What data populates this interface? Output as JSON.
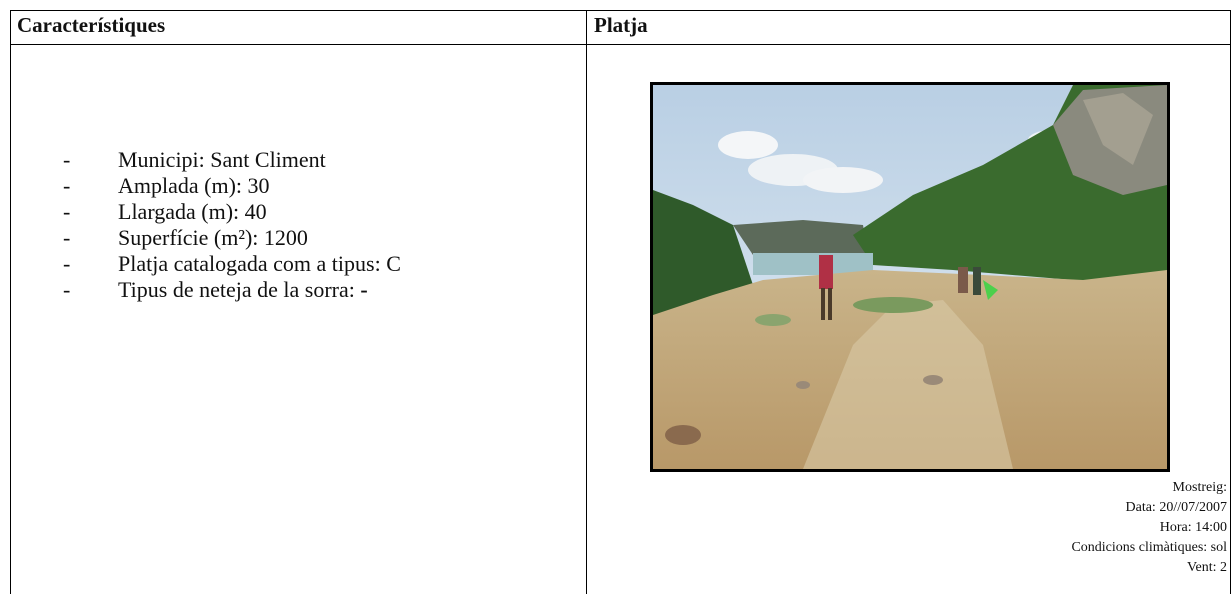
{
  "header": [
    "Característiques",
    "Platja"
  ],
  "items": [
    {
      "label": "Municipi:",
      "value": "Sant Climent"
    },
    {
      "label": "Amplada (m):",
      "value": "30"
    },
    {
      "label": "Llargada (m):",
      "value": "40"
    },
    {
      "label": "Superfície (m²):",
      "value": "1200"
    },
    {
      "label": "Platja catalogada com a tipus:",
      "value": "C"
    },
    {
      "label": "Tipus de neteja de la sorra:",
      "value": "-"
    }
  ],
  "caption": [
    "Mostreig:",
    "Data: 20//07/2007",
    "Hora: 14:00",
    "Condicions climàtiques: sol",
    "Vent: 2"
  ]
}
